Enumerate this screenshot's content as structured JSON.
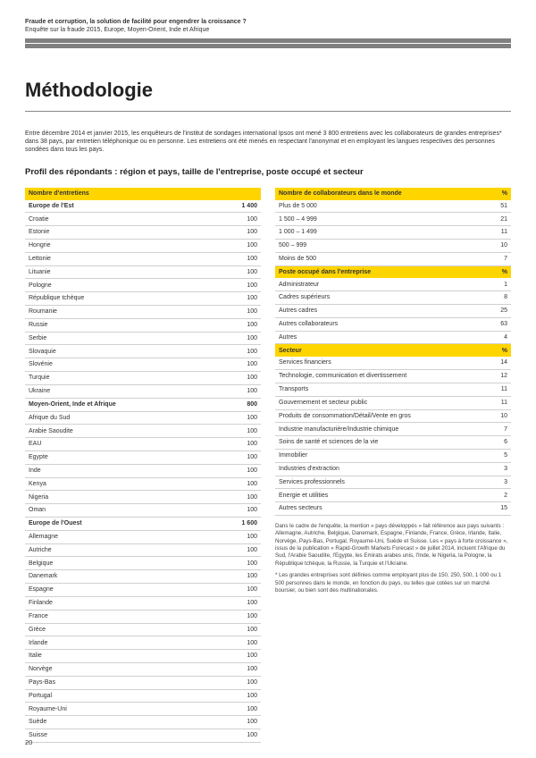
{
  "header": {
    "line1": "Fraude et corruption, la solution de facilité pour engendrer la croissance ?",
    "line2": "Enquête sur la fraude 2015, Europe, Moyen-Orient, Inde et Afrique"
  },
  "title": "Méthodologie",
  "intro": "Entre décembre 2014 et janvier 2015, les enquêteurs de l'institut de sondages international Ipsos ont mené 3 800 entretiens avec les collaborateurs de grandes entreprises* dans 38 pays, par entretien téléphonique ou en personne. Les entretiens ont été menés en respectant l'anonymat et en employant les langues respectives des personnes sondées dans tous les pays.",
  "subtitle": "Profil des répondants : région et pays, taille de l'entreprise, poste occupé et secteur",
  "left_table": {
    "header": [
      "Nombre d'entretiens",
      ""
    ],
    "sections": [
      {
        "label": "Europe de l'Est",
        "total": "1 400",
        "rows": [
          [
            "Croatie",
            "100"
          ],
          [
            "Estonie",
            "100"
          ],
          [
            "Hongrie",
            "100"
          ],
          [
            "Lettonie",
            "100"
          ],
          [
            "Lituanie",
            "100"
          ],
          [
            "Pologne",
            "100"
          ],
          [
            "République tchèque",
            "100"
          ],
          [
            "Roumanie",
            "100"
          ],
          [
            "Russie",
            "100"
          ],
          [
            "Serbie",
            "100"
          ],
          [
            "Slovaquie",
            "100"
          ],
          [
            "Slovénie",
            "100"
          ],
          [
            "Turquie",
            "100"
          ],
          [
            "Ukraine",
            "100"
          ]
        ]
      },
      {
        "label": "Moyen-Orient, Inde et Afrique",
        "total": "800",
        "rows": [
          [
            "Afrique du Sud",
            "100"
          ],
          [
            "Arabie Saoudite",
            "100"
          ],
          [
            "EAU",
            "100"
          ],
          [
            "Egypte",
            "100"
          ],
          [
            "Inde",
            "100"
          ],
          [
            "Kenya",
            "100"
          ],
          [
            "Nigeria",
            "100"
          ],
          [
            "Oman",
            "100"
          ]
        ]
      },
      {
        "label": "Europe de l'Ouest",
        "total": "1 600",
        "rows": [
          [
            "Allemagne",
            "100"
          ],
          [
            "Autriche",
            "100"
          ],
          [
            "Belgique",
            "100"
          ],
          [
            "Danemark",
            "100"
          ],
          [
            "Espagne",
            "100"
          ],
          [
            "Finlande",
            "100"
          ],
          [
            "France",
            "100"
          ],
          [
            "Grèce",
            "100"
          ],
          [
            "Irlande",
            "100"
          ],
          [
            "Italie",
            "100"
          ],
          [
            "Norvège",
            "100"
          ],
          [
            "Pays-Bas",
            "100"
          ],
          [
            "Portugal",
            "100"
          ],
          [
            "Royaume-Uni",
            "100"
          ],
          [
            "Suède",
            "100"
          ],
          [
            "Suisse",
            "100"
          ]
        ]
      }
    ]
  },
  "right_tables": [
    {
      "header": [
        "Nombre de collaborateurs dans le monde",
        "%"
      ],
      "rows": [
        [
          "Plus de 5 000",
          "51"
        ],
        [
          "1 500 – 4 999",
          "21"
        ],
        [
          "1 000 – 1 499",
          "11"
        ],
        [
          "500 – 999",
          "10"
        ],
        [
          "Moins de 500",
          "7"
        ]
      ]
    },
    {
      "header": [
        "Poste occupé dans l'entreprise",
        "%"
      ],
      "rows": [
        [
          "Administrateur",
          "1"
        ],
        [
          "Cadres supérieurs",
          "8"
        ],
        [
          "Autres cadres",
          "25"
        ],
        [
          "Autres collaborateurs",
          "63"
        ],
        [
          "Autres",
          "4"
        ]
      ]
    },
    {
      "header": [
        "Secteur",
        "%"
      ],
      "rows": [
        [
          "Services financiers",
          "14"
        ],
        [
          "Technologie, communication et divertissement",
          "12"
        ],
        [
          "Transports",
          "11"
        ],
        [
          "Gouvernement et secteur public",
          "11"
        ],
        [
          "Produits de consommation/Détail/Vente en gros",
          "10"
        ],
        [
          "Industrie manufacturière/Industrie chimique",
          "7"
        ],
        [
          "Soins de santé et sciences de la vie",
          "6"
        ],
        [
          "Immobilier",
          "5"
        ],
        [
          "Industries d'extraction",
          "3"
        ],
        [
          "Services professionnels",
          "3"
        ],
        [
          "Energie et utilities",
          "2"
        ],
        [
          "Autres secteurs",
          "15"
        ]
      ]
    }
  ],
  "notes": {
    "p1": "Dans le cadre de l'enquête, la mention « pays développés » fait référence aux pays suivants : Allemagne, Autriche, Belgique, Danemark, Espagne, Finlande, France, Grèce, Irlande, Italie, Norvège, Pays-Bas, Portugal, Royaume-Uni, Suède et Suisse. Les « pays à forte croissance », issus de la publication « Rapid-Growth Markets Forecast » de juillet 2014, incluent l'Afrique du Sud, l'Arabie Saoudite, l'Egypte, les Emirats arabes unis, l'Inde, le Nigeria, la Pologne, la République tchèque, la Russie, la Turquie et l'Ukraine.",
    "p2": "* Les grandes entreprises sont définies comme employant plus de 150, 250, 500, 1 000 ou 1 500 personnes dans le monde, en fonction du pays, ou telles que cotées sur un marché boursier, ou bien sont des multinationales."
  },
  "page_number": "20",
  "colors": {
    "accent": "#ffd500",
    "rule": "#d0d0d0",
    "headerbar": "#808080"
  }
}
